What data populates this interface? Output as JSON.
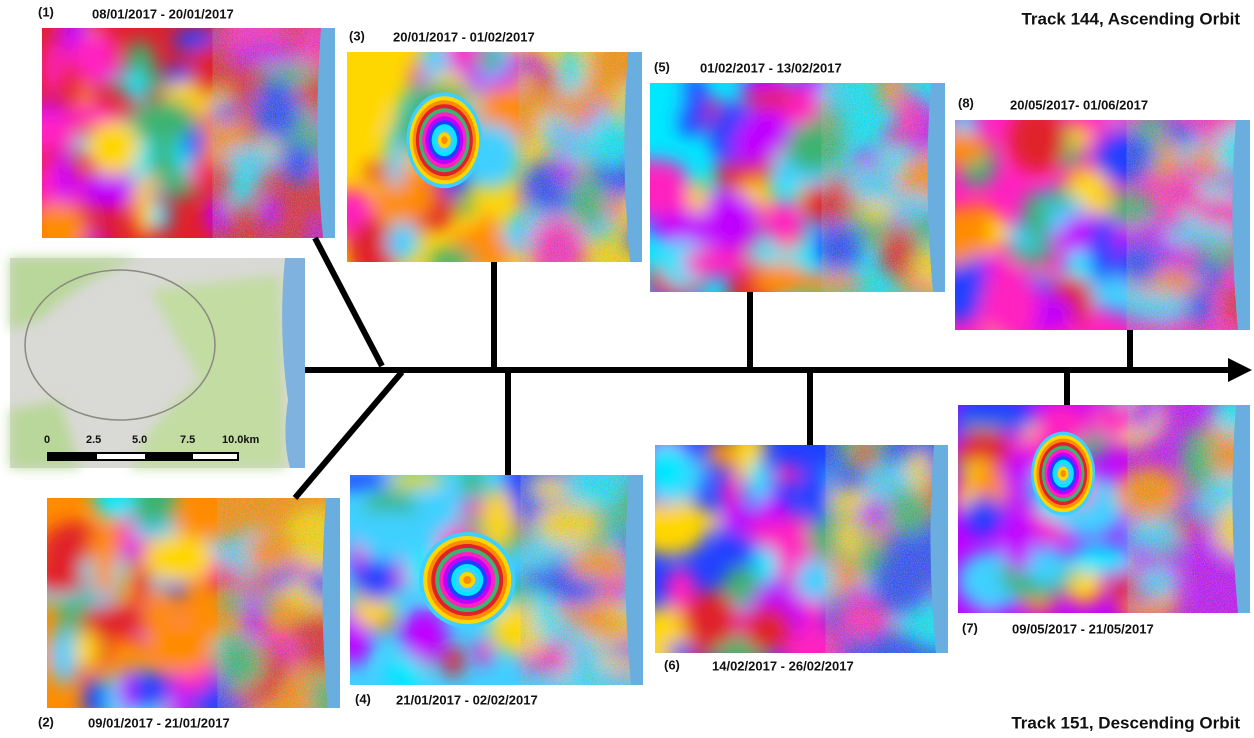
{
  "header": {
    "top": "Track 144, Ascending Orbit",
    "bottom": "Track 151, Descending Orbit"
  },
  "panels": [
    {
      "number": "(1)",
      "dates": "08/01/2017 - 20/01/2017"
    },
    {
      "number": "(2)",
      "dates": "09/01/2017 - 21/01/2017"
    },
    {
      "number": "(3)",
      "dates": "20/01/2017 - 01/02/2017"
    },
    {
      "number": "(4)",
      "dates": "21/01/2017 - 02/02/2017"
    },
    {
      "number": "(5)",
      "dates": "01/02/2017 - 13/02/2017"
    },
    {
      "number": "(6)",
      "dates": "14/02/2017 - 26/02/2017"
    },
    {
      "number": "(7)",
      "dates": "09/05/2017 - 21/05/2017"
    },
    {
      "number": "(8)",
      "dates": "20/05/2017- 01/06/2017"
    }
  ],
  "map": {
    "scale_labels": [
      "0",
      "2.5",
      "5.0",
      "7.5",
      "10.0km"
    ]
  }
}
